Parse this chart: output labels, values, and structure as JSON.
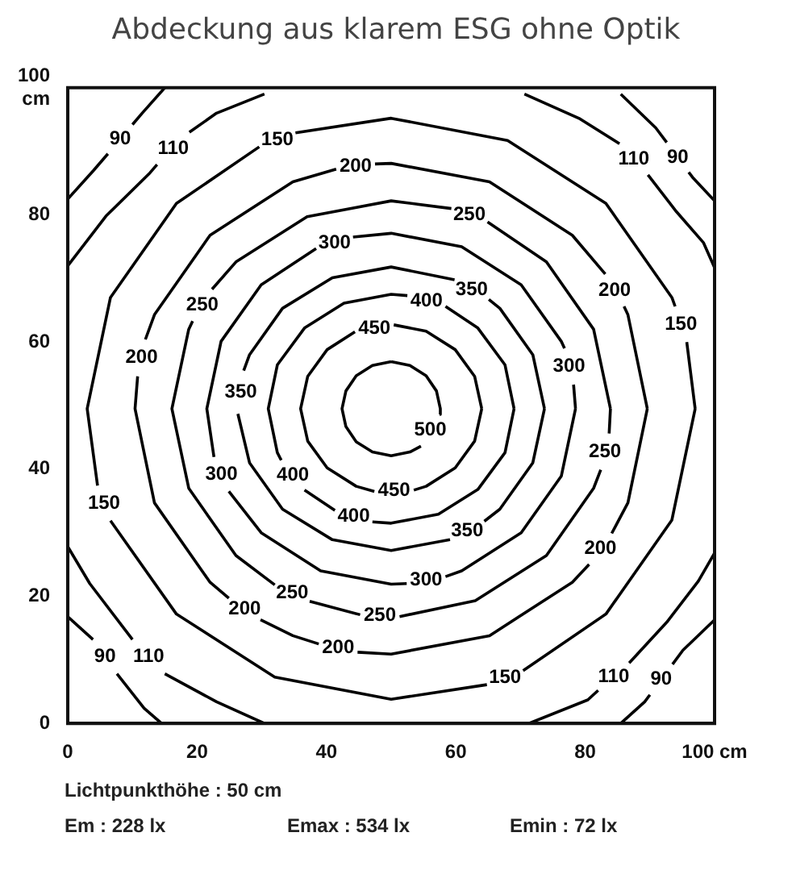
{
  "chart_data": {
    "type": "line",
    "title": "Abdeckung aus klarem ESG ohne Optik",
    "xlim": [
      0,
      100
    ],
    "ylim": [
      0,
      100
    ],
    "xticks": [
      0,
      20,
      40,
      60,
      80,
      {
        "value": 100,
        "label": "100 cm"
      }
    ],
    "yticks": [
      0,
      20,
      40,
      60,
      80,
      {
        "value": 100,
        "label": "100 cm"
      }
    ],
    "grid": false,
    "legend": false,
    "marker": "none",
    "line_style": "solid",
    "series": [
      {
        "name": "500",
        "color": "#000000",
        "x": [
          50,
          47.1,
          44.6,
          43.0,
          42.4,
          43.0,
          44.6,
          47.1,
          50,
          52.9,
          54.6,
          57.1,
          57.5,
          57.6,
          57.0,
          55.4,
          52.9,
          50
        ],
        "values": [
          56.9,
          56.3,
          54.7,
          52.3,
          49.5,
          46.7,
          44.3,
          42.7,
          42.1,
          42.7,
          43.6,
          null,
          48.6,
          49.5,
          52.3,
          54.7,
          56.3,
          56.9
        ]
      },
      {
        "name": "450",
        "color": "#000000",
        "x": [
          64,
          62.9,
          59.9,
          55.4,
          50.4,
          47.3,
          44.4,
          40.1,
          37.1,
          36,
          37.1,
          40.1,
          44.6,
          47.4,
          50.5,
          53.5,
          55.4,
          59.9,
          62.9,
          64
        ],
        "values": [
          49.5,
          54.6,
          58.8,
          61.7,
          62.7,
          null,
          61.6,
          58.8,
          54.6,
          49.5,
          44.4,
          40.2,
          37.3,
          36.5,
          null,
          36.7,
          37.3,
          40.2,
          44.4,
          49.5
        ]
      },
      {
        "name": "400",
        "color": "#000000",
        "x": [
          69,
          67.6,
          63.4,
          58.4,
          55.6,
          52.5,
          50,
          42.7,
          36.6,
          32.4,
          31,
          32.4,
          33.0,
          34.3,
          36.6,
          41.3,
          43.9,
          47.1,
          50,
          57.3,
          63.4,
          67.6,
          69
        ],
        "values": [
          49.5,
          56.4,
          62.2,
          65.6,
          null,
          67.3,
          67.5,
          66.1,
          62.2,
          56.4,
          49.5,
          42.6,
          41.4,
          null,
          36.7,
          33.5,
          null,
          31.7,
          31.5,
          32.9,
          36.8,
          42.6,
          49.5
        ]
      },
      {
        "name": "350",
        "color": "#000000",
        "x": [
          73.7,
          71.9,
          66.8,
          65.1,
          62.5,
          59.8,
          50,
          40.9,
          33.2,
          28.1,
          27.2,
          26.7,
          26.3,
          28.1,
          33.2,
          40.9,
          50,
          59.1,
          62.3,
          64.4,
          66.8,
          71.9,
          73.7
        ],
        "values": [
          49.5,
          58,
          65.3,
          66.7,
          null,
          69.8,
          71.8,
          70.1,
          65.3,
          58,
          55.5,
          null,
          48.7,
          41,
          33.7,
          28.9,
          27.2,
          28.9,
          null,
          31.8,
          33.7,
          41,
          49.5
        ]
      },
      {
        "name": "300",
        "color": "#000000",
        "x": [
          78.5,
          78.2,
          77.7,
          76.8,
          76.3,
          70.1,
          60.9,
          50,
          44.1,
          41.2,
          38.4,
          29.9,
          23.7,
          21.5,
          22.6,
          23.5,
          24.9,
          29.9,
          39.1,
          50,
          52.4,
          55.4,
          58.4,
          60.9,
          70.1,
          76.3,
          78.5
        ],
        "values": [
          49.5,
          53.3,
          null,
          59.0,
          60.1,
          69,
          75,
          77.1,
          76.5,
          null,
          74.7,
          69,
          60.1,
          49.5,
          41.9,
          null,
          36.5,
          30,
          24,
          21.9,
          22.0,
          null,
          23.1,
          24,
          30,
          38.9,
          49.5
        ]
      },
      {
        "name": "250",
        "color": "#000000",
        "x": [
          83.9,
          81.3,
          74,
          64.9,
          61.8,
          59.3,
          50,
          37,
          26,
          22.3,
          21.3,
          19.3,
          18.7,
          16.1,
          18.7,
          26,
          32.0,
          34.3,
          37.4,
          45.2,
          48.3,
          51.3,
          63,
          74,
          81.3,
          82.4,
          83.1,
          83.7,
          83.9
        ],
        "values": [
          49.5,
          62,
          72.6,
          78.9,
          null,
          81.0,
          82.2,
          79.7,
          72.6,
          68.3,
          null,
          63.3,
          62,
          49.5,
          37,
          26.4,
          21.8,
          null,
          19.2,
          17.1,
          null,
          16.8,
          19.3,
          26.4,
          37,
          39.9,
          null,
          45.6,
          49.5
        ]
      },
      {
        "name": "200",
        "color": "#000000",
        "x": [
          89.6,
          86.6,
          86.0,
          84.3,
          83.1,
          78,
          65.2,
          50,
          47.5,
          44.6,
          41.5,
          34.8,
          22,
          13.4,
          12.0,
          11.3,
          10.8,
          10.4,
          13.4,
          22,
          24.9,
          27.2,
          29.8,
          34.8,
          38.8,
          41.7,
          44.8,
          50,
          65.2,
          78,
          80.6,
          82.8,
          84.1,
          86.6,
          89.6
        ],
        "values": [
          49.5,
          64.3,
          65.6,
          null,
          70.7,
          76.8,
          85.2,
          88.1,
          88.0,
          null,
          87.2,
          85.2,
          76.8,
          64.3,
          60.4,
          null,
          54.6,
          49.5,
          34.7,
          22.2,
          19.7,
          null,
          16.3,
          13.8,
          12.5,
          null,
          11.2,
          10.9,
          13.8,
          22.2,
          25.0,
          null,
          29.9,
          34.7,
          49.5
        ]
      },
      {
        "name": "150",
        "color": "#000000",
        "x": [
          97,
          95.7,
          94.9,
          93.9,
          93.4,
          83.2,
          68,
          50,
          35.2,
          32.6,
          29.6,
          16.8,
          6.6,
          3,
          4.6,
          5.6,
          6.6,
          16.8,
          32,
          50,
          64.8,
          67.6,
          70.4,
          83.2,
          93.4,
          97
        ],
        "values": [
          49.5,
          60.0,
          null,
          65.6,
          67,
          81.8,
          91.7,
          95.2,
          92.9,
          null,
          90.7,
          81.8,
          67,
          49.5,
          37.4,
          null,
          31.9,
          17.2,
          7.3,
          3.8,
          6.1,
          null,
          8.3,
          17.2,
          32,
          49.5
        ]
      },
      {
        "name": "110",
        "color": "#000000",
        "x": [
          0,
          5.9,
          12.7,
          13.8,
          16.2,
          18.8,
          23,
          30.4
        ],
        "values": [
          72,
          79.8,
          86.6,
          87.9,
          null,
          93,
          96,
          99
        ]
      },
      {
        "name": "110",
        "color": "#000000",
        "x": [
          70.6,
          79.2,
          85.3,
          87.5,
          89.7,
          94.1,
          98.3,
          100
        ],
        "values": [
          99,
          95.1,
          91.2,
          null,
          86.3,
          80.5,
          75.6,
          71.7
        ]
      },
      {
        "name": "110",
        "color": "#000000",
        "x": [
          71.3,
          80.4,
          82.0,
          84.3,
          86.8,
          92.6,
          97.5,
          100
        ],
        "values": [
          0,
          3.7,
          5.2,
          null,
          9.5,
          15.9,
          22.4,
          26.8
        ]
      },
      {
        "name": "110",
        "color": "#000000",
        "x": [
          0,
          3.4,
          10,
          12.7,
          15,
          23,
          30.4
        ],
        "values": [
          27.8,
          22,
          13.2,
          null,
          7.8,
          3.4,
          0
        ]
      },
      {
        "name": "90",
        "color": "#000000",
        "x": [
          0,
          4,
          6.2,
          8.1,
          10,
          11.5,
          15
        ],
        "values": [
          82.5,
          87,
          89.6,
          null,
          94.2,
          96,
          100
        ]
      },
      {
        "name": "90",
        "color": "#000000",
        "x": [
          85.5,
          90.9,
          92.6,
          94.4,
          96.0,
          96.6,
          100
        ],
        "values": [
          99,
          93.7,
          91.4,
          null,
          86.7,
          85.9,
          82.2
        ]
      },
      {
        "name": "90",
        "color": "#000000",
        "x": [
          85.5,
          89.2,
          90.0,
          91.9,
          93.5,
          95.1,
          100
        ],
        "values": [
          0,
          3.4,
          4.5,
          null,
          9.3,
          11.5,
          16.3
        ]
      },
      {
        "name": "90",
        "color": "#000000",
        "x": [
          0,
          3.9,
          5.6,
          7.6,
          11.8,
          14.5
        ],
        "values": [
          16.8,
          13.2,
          null,
          7.8,
          2.4,
          0
        ]
      }
    ],
    "annotations": [
      "Lichtpunkthöhe : 50 cm",
      "Em : 228 lx",
      "Emax : 534 lx",
      "Emin : 72 lx"
    ]
  }
}
